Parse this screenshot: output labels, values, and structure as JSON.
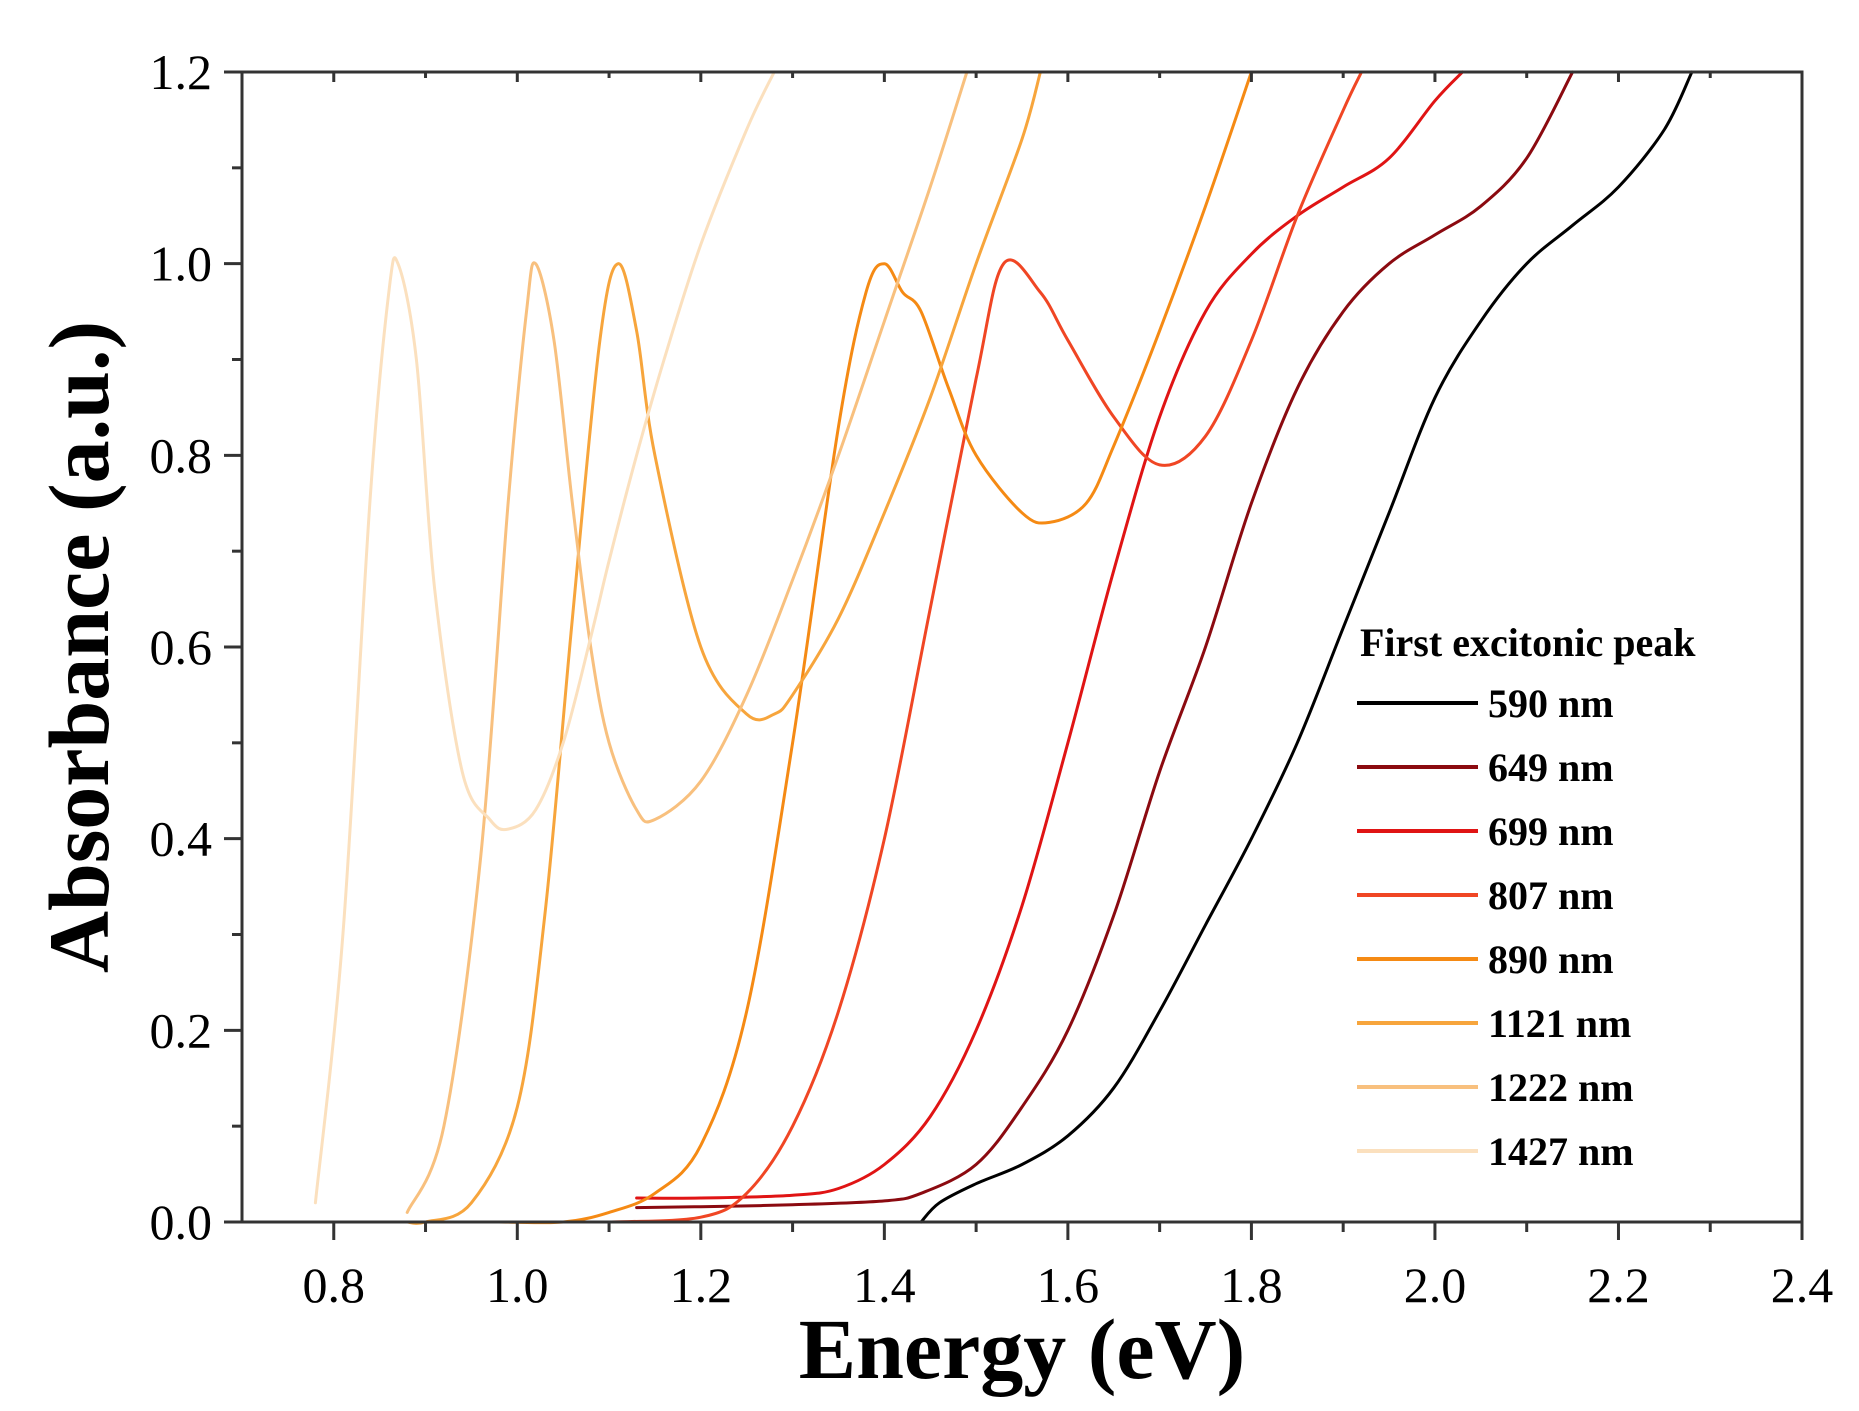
{
  "chart_data": {
    "type": "line",
    "title": "",
    "xlabel": "Energy (eV)",
    "ylabel": "Absorbance (a.u.)",
    "xlim": [
      0.7,
      2.4
    ],
    "ylim": [
      0.0,
      1.2
    ],
    "x_ticks": [
      0.8,
      1.0,
      1.2,
      1.4,
      1.6,
      1.8,
      2.0,
      2.2,
      2.4
    ],
    "x_tick_labels": [
      "0.8",
      "1.0",
      "1.2",
      "1.4",
      "1.6",
      "1.8",
      "2.0",
      "2.2",
      "2.4"
    ],
    "y_ticks": [
      0.0,
      0.2,
      0.4,
      0.6,
      0.8,
      1.0,
      1.2
    ],
    "y_tick_labels": [
      "0.0",
      "0.2",
      "0.4",
      "0.6",
      "0.8",
      "1.0",
      "1.2"
    ],
    "grid": false,
    "legend": {
      "title": "First excitonic peak",
      "placement": "bottom-right"
    },
    "series": [
      {
        "name": "590 nm",
        "color": "#000000",
        "x": [
          1.44,
          1.46,
          1.5,
          1.55,
          1.6,
          1.65,
          1.7,
          1.75,
          1.8,
          1.85,
          1.9,
          1.95,
          2.0,
          2.05,
          2.1,
          2.15,
          2.2,
          2.25,
          2.28
        ],
        "y": [
          0.0,
          0.02,
          0.04,
          0.06,
          0.09,
          0.14,
          0.22,
          0.31,
          0.4,
          0.5,
          0.62,
          0.74,
          0.86,
          0.94,
          1.0,
          1.04,
          1.08,
          1.14,
          1.2
        ]
      },
      {
        "name": "649 nm",
        "color": "#8b0a10",
        "x": [
          1.13,
          1.2,
          1.3,
          1.4,
          1.44,
          1.5,
          1.55,
          1.6,
          1.65,
          1.7,
          1.75,
          1.8,
          1.85,
          1.9,
          1.95,
          2.0,
          2.05,
          2.1,
          2.15
        ],
        "y": [
          0.015,
          0.016,
          0.018,
          0.022,
          0.03,
          0.06,
          0.12,
          0.2,
          0.32,
          0.47,
          0.6,
          0.75,
          0.87,
          0.95,
          1.0,
          1.03,
          1.06,
          1.11,
          1.2
        ]
      },
      {
        "name": "699 nm",
        "color": "#e01414",
        "x": [
          1.13,
          1.2,
          1.3,
          1.35,
          1.4,
          1.45,
          1.5,
          1.55,
          1.6,
          1.65,
          1.7,
          1.75,
          1.8,
          1.85,
          1.9,
          1.95,
          2.0,
          2.03
        ],
        "y": [
          0.025,
          0.025,
          0.028,
          0.035,
          0.06,
          0.11,
          0.2,
          0.33,
          0.5,
          0.68,
          0.84,
          0.95,
          1.01,
          1.05,
          1.08,
          1.11,
          1.17,
          1.2
        ]
      },
      {
        "name": "807 nm",
        "color": "#f04624",
        "x": [
          1.1,
          1.2,
          1.25,
          1.3,
          1.35,
          1.4,
          1.45,
          1.5,
          1.53,
          1.57,
          1.6,
          1.65,
          1.7,
          1.75,
          1.8,
          1.85,
          1.9,
          1.92
        ],
        "y": [
          0.0,
          0.005,
          0.03,
          0.1,
          0.22,
          0.4,
          0.64,
          0.88,
          1.0,
          0.97,
          0.92,
          0.84,
          0.79,
          0.82,
          0.92,
          1.05,
          1.16,
          1.2
        ]
      },
      {
        "name": "890 nm",
        "color": "#f58a14",
        "x": [
          0.98,
          1.05,
          1.1,
          1.15,
          1.2,
          1.25,
          1.3,
          1.35,
          1.38,
          1.4,
          1.42,
          1.44,
          1.47,
          1.5,
          1.55,
          1.58,
          1.62,
          1.65,
          1.7,
          1.75,
          1.8
        ],
        "y": [
          0.0,
          0.0,
          0.01,
          0.03,
          0.08,
          0.22,
          0.5,
          0.83,
          0.97,
          1.0,
          0.97,
          0.95,
          0.87,
          0.8,
          0.74,
          0.73,
          0.75,
          0.81,
          0.93,
          1.06,
          1.2
        ]
      },
      {
        "name": "1121 nm",
        "color": "#f7a53c",
        "x": [
          0.88,
          0.9,
          0.95,
          1.0,
          1.03,
          1.06,
          1.09,
          1.11,
          1.13,
          1.15,
          1.2,
          1.25,
          1.28,
          1.3,
          1.35,
          1.4,
          1.45,
          1.5,
          1.55,
          1.57
        ],
        "y": [
          0.0,
          0.0,
          0.02,
          0.12,
          0.32,
          0.63,
          0.92,
          1.0,
          0.93,
          0.8,
          0.6,
          0.53,
          0.53,
          0.55,
          0.63,
          0.74,
          0.86,
          1.0,
          1.13,
          1.2
        ]
      },
      {
        "name": "1222 nm",
        "color": "#f8c07e",
        "x": [
          0.88,
          0.92,
          0.96,
          0.99,
          1.01,
          1.02,
          1.04,
          1.06,
          1.08,
          1.1,
          1.13,
          1.15,
          1.2,
          1.25,
          1.3,
          1.35,
          1.4,
          1.45,
          1.49
        ],
        "y": [
          0.01,
          0.1,
          0.38,
          0.75,
          0.95,
          1.0,
          0.92,
          0.75,
          0.6,
          0.5,
          0.43,
          0.42,
          0.46,
          0.55,
          0.67,
          0.8,
          0.94,
          1.08,
          1.2
        ]
      },
      {
        "name": "1427 nm",
        "color": "#fbe0be",
        "x": [
          0.78,
          0.81,
          0.84,
          0.86,
          0.87,
          0.89,
          0.91,
          0.94,
          0.97,
          0.99,
          1.02,
          1.05,
          1.08,
          1.1,
          1.13,
          1.16,
          1.2,
          1.25,
          1.28
        ],
        "y": [
          0.02,
          0.3,
          0.76,
          0.97,
          1.0,
          0.9,
          0.66,
          0.47,
          0.42,
          0.41,
          0.43,
          0.5,
          0.61,
          0.69,
          0.8,
          0.9,
          1.02,
          1.14,
          1.2
        ]
      }
    ]
  }
}
